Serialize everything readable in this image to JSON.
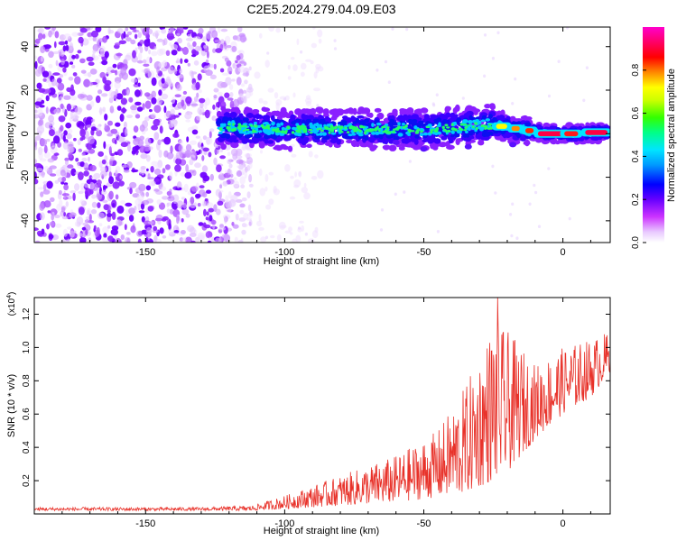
{
  "title": "C2E5.2024.279.04.09.E03",
  "chart_data": [
    {
      "type": "heatmap",
      "xlabel": "Height of straight line (km)",
      "ylabel": "Frequency (Hz)",
      "xlim": [
        -190,
        17
      ],
      "ylim": [
        -50,
        49
      ],
      "x_ticks": [
        -150,
        -100,
        -50,
        0
      ],
      "y_ticks": [
        -40,
        -20,
        0,
        20,
        40
      ],
      "grid": false,
      "signal_band": {
        "x_start": -124,
        "x_end": 17,
        "center_freq": [
          [
            -124,
            3
          ],
          [
            -100,
            2
          ],
          [
            -75,
            2
          ],
          [
            -50,
            2
          ],
          [
            -25,
            4
          ],
          [
            -15,
            2
          ],
          [
            -5,
            0
          ],
          [
            5,
            0
          ],
          [
            17,
            1
          ]
        ]
      },
      "noise_region": {
        "x_start": -190,
        "x_end": -112
      },
      "colorbar": {
        "label": "Normalized spectral amplitude",
        "range": [
          0.0,
          1.0
        ],
        "ticks": [
          "0.0",
          "0.2",
          "0.4",
          "0.6",
          "0.8"
        ],
        "colormap": [
          "#ffffff",
          "#cc33ff",
          "#6600ff",
          "#0000ff",
          "#00ccff",
          "#00ff88",
          "#33ff00",
          "#ffff00",
          "#ff8800",
          "#ff0000",
          "#ff0066",
          "#ff00cc"
        ]
      }
    },
    {
      "type": "line",
      "xlabel": "Height of straight line (km)",
      "ylabel": "SNR (10 * v/v)",
      "exponent_label": "(x10",
      "exponent_sup": "4",
      "exponent_close": ")",
      "xlim": [
        -190,
        17
      ],
      "ylim": [
        0,
        1.3
      ],
      "x_ticks": [
        -150,
        -100,
        -50,
        0
      ],
      "y_ticks": [
        "0.2",
        "0.4",
        "0.6",
        "0.8",
        "1.0",
        "1.2"
      ],
      "color": "#e8322a",
      "envelope": [
        {
          "x": -190,
          "base": 0.02,
          "amp": 0.02
        },
        {
          "x": -130,
          "base": 0.02,
          "amp": 0.02
        },
        {
          "x": -112,
          "base": 0.02,
          "amp": 0.03
        },
        {
          "x": -100,
          "base": 0.03,
          "amp": 0.08
        },
        {
          "x": -80,
          "base": 0.05,
          "amp": 0.18
        },
        {
          "x": -60,
          "base": 0.07,
          "amp": 0.28
        },
        {
          "x": -45,
          "base": 0.1,
          "amp": 0.4
        },
        {
          "x": -35,
          "base": 0.12,
          "amp": 0.65
        },
        {
          "x": -25,
          "base": 0.2,
          "amp": 0.95
        },
        {
          "x": -20,
          "base": 0.25,
          "amp": 0.85
        },
        {
          "x": -10,
          "base": 0.45,
          "amp": 0.45
        },
        {
          "x": 0,
          "base": 0.6,
          "amp": 0.4
        },
        {
          "x": 10,
          "base": 0.7,
          "amp": 0.35
        },
        {
          "x": 17,
          "base": 0.85,
          "amp": 0.25
        }
      ],
      "peak": {
        "x": -23.5,
        "y": 1.3
      }
    }
  ]
}
